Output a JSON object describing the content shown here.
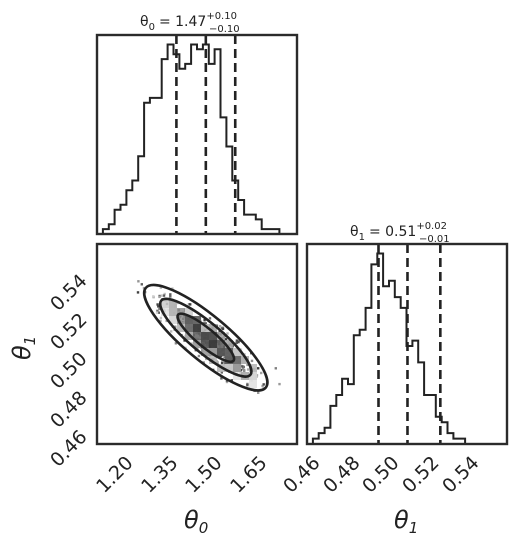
{
  "chart_data": [
    {
      "type": "histogram",
      "panel": "theta0-marginal",
      "title_lhs": "θ0 = 1.47",
      "title_sup": "+0.10",
      "title_sub": "−0.10",
      "xlim": [
        1.1,
        1.78
      ],
      "bin_edges_start": 1.1,
      "bin_width": 0.02,
      "counts": [
        0,
        1,
        2,
        5,
        6,
        9,
        11,
        16,
        27,
        28,
        28,
        36,
        39,
        37,
        34,
        35,
        39,
        38,
        39,
        35,
        38,
        24,
        18,
        11,
        7,
        4,
        4,
        3,
        1,
        1,
        1,
        0,
        0,
        0
      ],
      "quantiles": [
        1.37,
        1.47,
        1.57
      ]
    },
    {
      "type": "histogram",
      "panel": "theta1-marginal",
      "title_lhs": "θ1 = 0.51",
      "title_sup": "+0.02",
      "title_sub": "−0.01",
      "xlim": [
        0.455,
        0.5585
      ],
      "bin_edges_start": 0.455,
      "bin_width": 0.00303,
      "counts": [
        0,
        1,
        2,
        3,
        7,
        9,
        12,
        11,
        20,
        21,
        25,
        33,
        35,
        29,
        30,
        27,
        25,
        18,
        19,
        15,
        9,
        9,
        5,
        4,
        2,
        1,
        1,
        0,
        0,
        0,
        0,
        0,
        0,
        0
      ],
      "quantiles": [
        0.492,
        0.507,
        0.524
      ],
      "xticks": [
        "0.46",
        "0.48",
        "0.50",
        "0.52",
        "0.54"
      ],
      "xlabel": "θ1"
    },
    {
      "type": "scatter",
      "panel": "joint",
      "xlim": [
        1.1,
        1.78
      ],
      "ylim": [
        0.455,
        0.5585
      ],
      "center": [
        1.47,
        0.51
      ],
      "contour_levels": [
        "outer",
        "middle",
        "inner"
      ],
      "xticks": [
        "1.20",
        "1.35",
        "1.50",
        "1.65"
      ],
      "yticks": [
        "0.46",
        "0.48",
        "0.50",
        "0.52",
        "0.54"
      ],
      "xlabel": "θ0",
      "ylabel": "θ1"
    }
  ],
  "labels": {
    "title0_main": "θ",
    "title0_sub": "0",
    "title0_eq": "= 1.47",
    "title0_sup": "+0.10",
    "title0_subq": "−0.10",
    "title1_main": "θ",
    "title1_sub": "1",
    "title1_eq": "= 0.51",
    "title1_sup": "+0.02",
    "title1_subq": "−0.01",
    "xlabel0_main": "θ",
    "xlabel0_sub": "0",
    "xlabel1_main": "θ",
    "xlabel1_sub": "1",
    "ylabel_main": "θ",
    "ylabel_sub": "1",
    "xticks0": [
      "1.20",
      "1.35",
      "1.50",
      "1.65"
    ],
    "yticks1": [
      "0.54",
      "0.52",
      "0.50",
      "0.48",
      "0.46"
    ],
    "xticks1": [
      "0.46",
      "0.48",
      "0.50",
      "0.52",
      "0.54"
    ]
  },
  "colors": {
    "line": "#222222",
    "axis": "#2b2b2b",
    "background": "#ffffff"
  }
}
